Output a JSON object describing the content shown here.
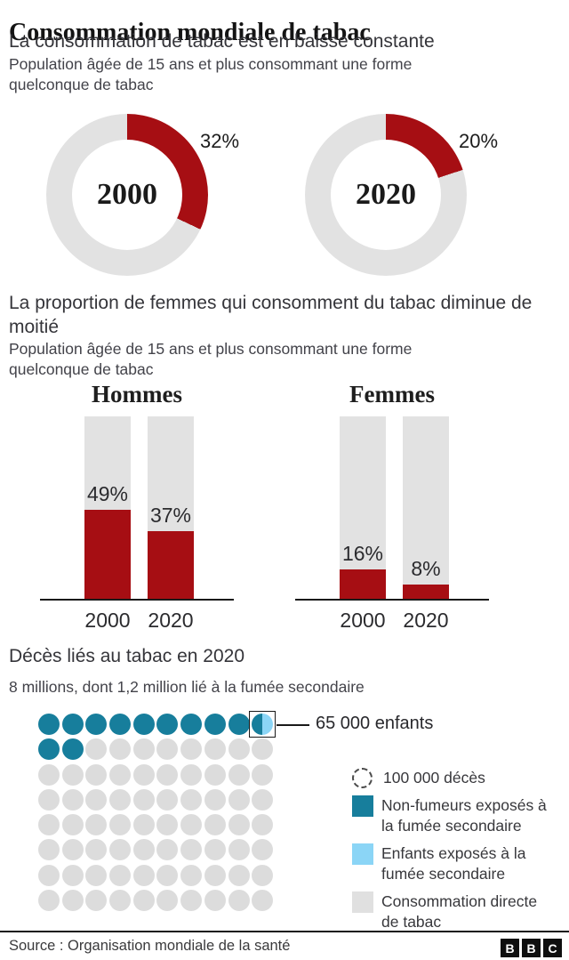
{
  "header": {
    "title": "Consommation mondiale de tabac",
    "subtitle": "La consommation de tabac est en baisse constante",
    "description": "Population âgée de 15 ans et plus consommant une forme quelconque de tabac"
  },
  "colors": {
    "red": "#a60e13",
    "chart_gray": "#e2e2e2",
    "dot_gray": "#dcdcdc",
    "teal": "#177e9c",
    "light_blue": "#8bd5f6"
  },
  "chart_data": [
    {
      "type": "donut",
      "description": "Population âgée de 15 ans et plus consommant une forme quelconque de tabac",
      "unit": "%",
      "series": [
        {
          "center_label": "2000",
          "value_pct": 32,
          "value_label": "32%"
        },
        {
          "center_label": "2020",
          "value_pct": 20,
          "value_label": "20%"
        }
      ]
    },
    {
      "type": "bar",
      "section_title": "La proportion de femmes qui consomment du tabac diminue de moitié",
      "section_description": "Population âgée de 15 ans et plus consommant une forme quelconque de tabac",
      "ylim": [
        0,
        100
      ],
      "bar_style": "filled portion of 100% gray column",
      "groups": [
        {
          "name": "Hommes",
          "categories": [
            "2000",
            "2020"
          ],
          "values": [
            49,
            37
          ],
          "labels": [
            "49%",
            "37%"
          ]
        },
        {
          "name": "Femmes",
          "categories": [
            "2000",
            "2020"
          ],
          "values": [
            16,
            8
          ],
          "labels": [
            "16%",
            "8%"
          ]
        }
      ]
    },
    {
      "type": "pictogram",
      "section_title": "Décès liés au tabac en 2020",
      "section_description": "8 millions, dont 1,2 million lié à la fumée secondaire",
      "dot_value": 100000,
      "rows": 8,
      "cols": 10,
      "grid_rows": [
        "TTTTTTTTTS",
        "TTGGGGGGGG",
        "GGGGGGGGGG",
        "GGGGGGGGGG",
        "GGGGGGGGGG",
        "GGGGGGGGGG",
        "GGGGGGGGGG",
        "GGGGGGGGGG"
      ],
      "callout_label": "65 000 enfants",
      "legend": [
        {
          "swatch": "dashed-circle",
          "label": "100 000 décès"
        },
        {
          "swatch": "teal",
          "label": "Non-fumeurs exposés à la fumée secondaire"
        },
        {
          "swatch": "light-blue",
          "label": "Enfants exposés à la fumée secondaire"
        },
        {
          "swatch": "gray",
          "label": "Consommation directe de tabac"
        }
      ]
    }
  ],
  "footer": {
    "source": "Source : Organisation mondiale de la santé",
    "logo_letters": [
      "B",
      "B",
      "C"
    ]
  }
}
